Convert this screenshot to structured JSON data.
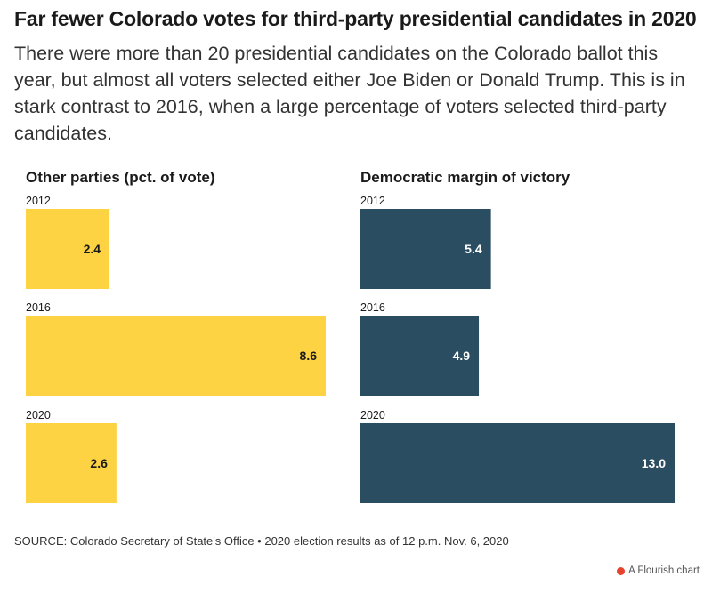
{
  "title": "Far fewer Colorado votes for third-party presidential candidates in 2020",
  "subtitle": "There were more than 20 presidential candidates on the Colorado ballot this year, but almost all voters selected either Joe Biden or Donald Trump. This is in stark contrast to 2016, when a large percentage of voters selected third-party candidates.",
  "source": "SOURCE: Colorado Secretary of State's Office • 2020 election results as of 12 p.m. Nov. 6, 2020",
  "credit": "A Flourish chart",
  "colors": {
    "other_parties": "#fdd344",
    "dem_margin": "#2b4d61",
    "label_dark": "#1a1a1a",
    "label_light": "#ffffff",
    "credit_icon": "#e8412c"
  },
  "chart_data": [
    {
      "type": "bar",
      "orientation": "horizontal",
      "title": "Other parties (pct. of vote)",
      "categories": [
        "2012",
        "2016",
        "2020"
      ],
      "values": [
        2.4,
        8.6,
        2.6
      ],
      "value_labels": [
        "2.4",
        "8.6",
        "2.6"
      ],
      "color": "#fdd344",
      "xlim": [
        0,
        8.6
      ]
    },
    {
      "type": "bar",
      "orientation": "horizontal",
      "title": "Democratic margin of victory",
      "categories": [
        "2012",
        "2016",
        "2020"
      ],
      "values": [
        5.4,
        4.9,
        13.0
      ],
      "value_labels": [
        "5.4",
        "4.9",
        "13.0"
      ],
      "color": "#2b4d61",
      "xlim": [
        0,
        13.0
      ]
    }
  ]
}
